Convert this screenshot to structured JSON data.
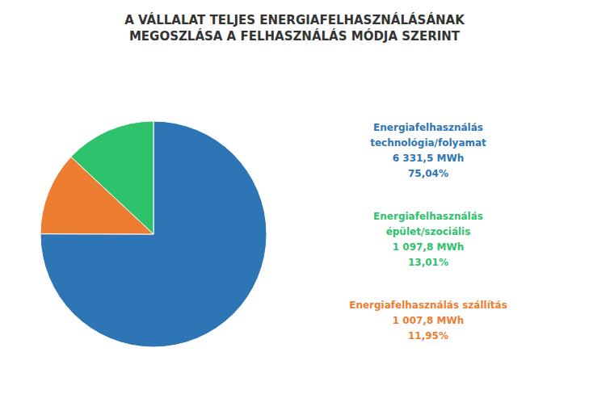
{
  "chart_data": {
    "type": "pie",
    "title": "A VÁLLALAT TELJES ENERGIAFELHASZNÁLÁSÁNAK\nMEGOSZLÁSA A FELHASZNÁLÁS MÓDJA SZERINT",
    "values": [
      75.04,
      11.95,
      13.01
    ],
    "colors": [
      "#2E75B6",
      "#ED7D31",
      "#2DC26B"
    ],
    "annotations": [
      {
        "text": "Energiafelhasználás\ntechnológia/folyamat\n6 331,5 MWh\n75,04%",
        "color": "#2E75B6"
      },
      {
        "text": "Energiafelhasználás\népület/szociális\n1 097,8 MWh\n13,01%",
        "color": "#2DC26B"
      },
      {
        "text": "Energiafelhasználás szállítás\n1 007,8 MWh\n11,95%",
        "color": "#ED7D31"
      }
    ]
  }
}
